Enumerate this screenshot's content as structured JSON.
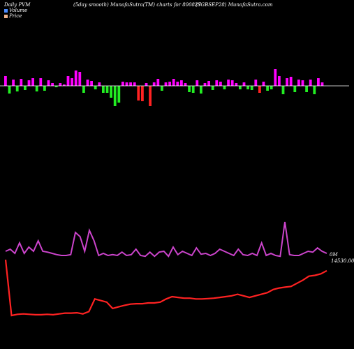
{
  "header": {
    "left": "Daily PVM",
    "center": "(5day smooth) MunafaSutra(TM) charts for 800827",
    "right": "(SGBSEP28) MunafaSutra.com"
  },
  "legend": {
    "volume_label": "Volume",
    "price_label": "Price",
    "volume_color": "#4c8cff",
    "price_color": "#f2b48c"
  },
  "colors": {
    "background": "#000000",
    "baseline": "#ffffff",
    "bar_up": "#ff00ff",
    "bar_down_green": "#22ee22",
    "bar_down_red": "#ff2222",
    "volume_line": "#cc44cc",
    "price_line": "#ff2222"
  },
  "chart_data": {
    "type": "bar+line",
    "series": [
      {
        "name": "Volume",
        "type": "bar",
        "values": [
          14,
          -11,
          9,
          -8,
          10,
          -6,
          8,
          11,
          -8,
          11,
          -7,
          8,
          4,
          -2,
          4,
          2,
          14,
          11,
          22,
          20,
          -10,
          9,
          7,
          -5,
          5,
          -10,
          -10,
          -17,
          -29,
          -24,
          6,
          5,
          5,
          5,
          -21,
          -22,
          4,
          -29,
          5,
          10,
          -7,
          5,
          6,
          10,
          6,
          8,
          4,
          -9,
          -10,
          8,
          -11,
          4,
          7,
          -6,
          8,
          6,
          -5,
          9,
          8,
          4,
          -5,
          5,
          -5,
          -6,
          9,
          -10,
          6,
          -7,
          -5,
          24,
          14,
          -12,
          11,
          13,
          -9,
          9,
          8,
          -9,
          9,
          -12,
          11,
          5
        ],
        "colors": [
          "up",
          "dg",
          "up",
          "dg",
          "up",
          "dg",
          "up",
          "up",
          "dg",
          "up",
          "dg",
          "up",
          "up",
          "dg",
          "up",
          "up",
          "up",
          "up",
          "up",
          "up",
          "dg",
          "up",
          "up",
          "dg",
          "up",
          "dg",
          "dg",
          "dg",
          "dg",
          "dg",
          "up",
          "up",
          "up",
          "up",
          "dr",
          "dr",
          "up",
          "dr",
          "up",
          "up",
          "dg",
          "up",
          "up",
          "up",
          "up",
          "up",
          "up",
          "dg",
          "dg",
          "up",
          "dg",
          "up",
          "up",
          "dg",
          "up",
          "up",
          "dg",
          "up",
          "up",
          "up",
          "dg",
          "up",
          "dg",
          "dg",
          "up",
          "dr",
          "up",
          "dg",
          "dg",
          "up",
          "up",
          "dg",
          "up",
          "up",
          "dg",
          "up",
          "up",
          "dg",
          "up",
          "dg",
          "up",
          "up"
        ]
      },
      {
        "name": "Volume",
        "type": "line",
        "values": [
          30,
          35,
          25,
          50,
          25,
          40,
          30,
          55,
          30,
          28,
          25,
          22,
          20,
          20,
          22,
          75,
          65,
          30,
          80,
          55,
          20,
          25,
          20,
          22,
          20,
          28,
          20,
          22,
          35,
          20,
          18,
          28,
          18,
          28,
          30,
          18,
          40,
          22,
          30,
          25,
          20,
          38,
          23,
          25,
          20,
          25,
          35,
          30,
          25,
          20,
          35,
          22,
          20,
          25,
          20,
          50,
          20,
          25,
          20,
          18,
          100,
          22,
          20,
          20,
          25,
          30,
          28,
          38,
          30,
          25
        ],
        "label": "0M"
      },
      {
        "name": "Price",
        "type": "line",
        "values": [
          15200,
          14490,
          14505,
          14510,
          14505,
          14500,
          14500,
          14505,
          14500,
          14510,
          14520,
          14520,
          14525,
          14510,
          14540,
          14700,
          14680,
          14660,
          14580,
          14600,
          14620,
          14635,
          14640,
          14640,
          14650,
          14650,
          14660,
          14700,
          14730,
          14720,
          14710,
          14710,
          14700,
          14700,
          14705,
          14710,
          14720,
          14730,
          14740,
          14760,
          14740,
          14720,
          14740,
          14760,
          14780,
          14820,
          14840,
          14850,
          14860,
          14900,
          14940,
          14990,
          15000,
          15020,
          15060
        ],
        "label": "14530.00"
      }
    ]
  }
}
